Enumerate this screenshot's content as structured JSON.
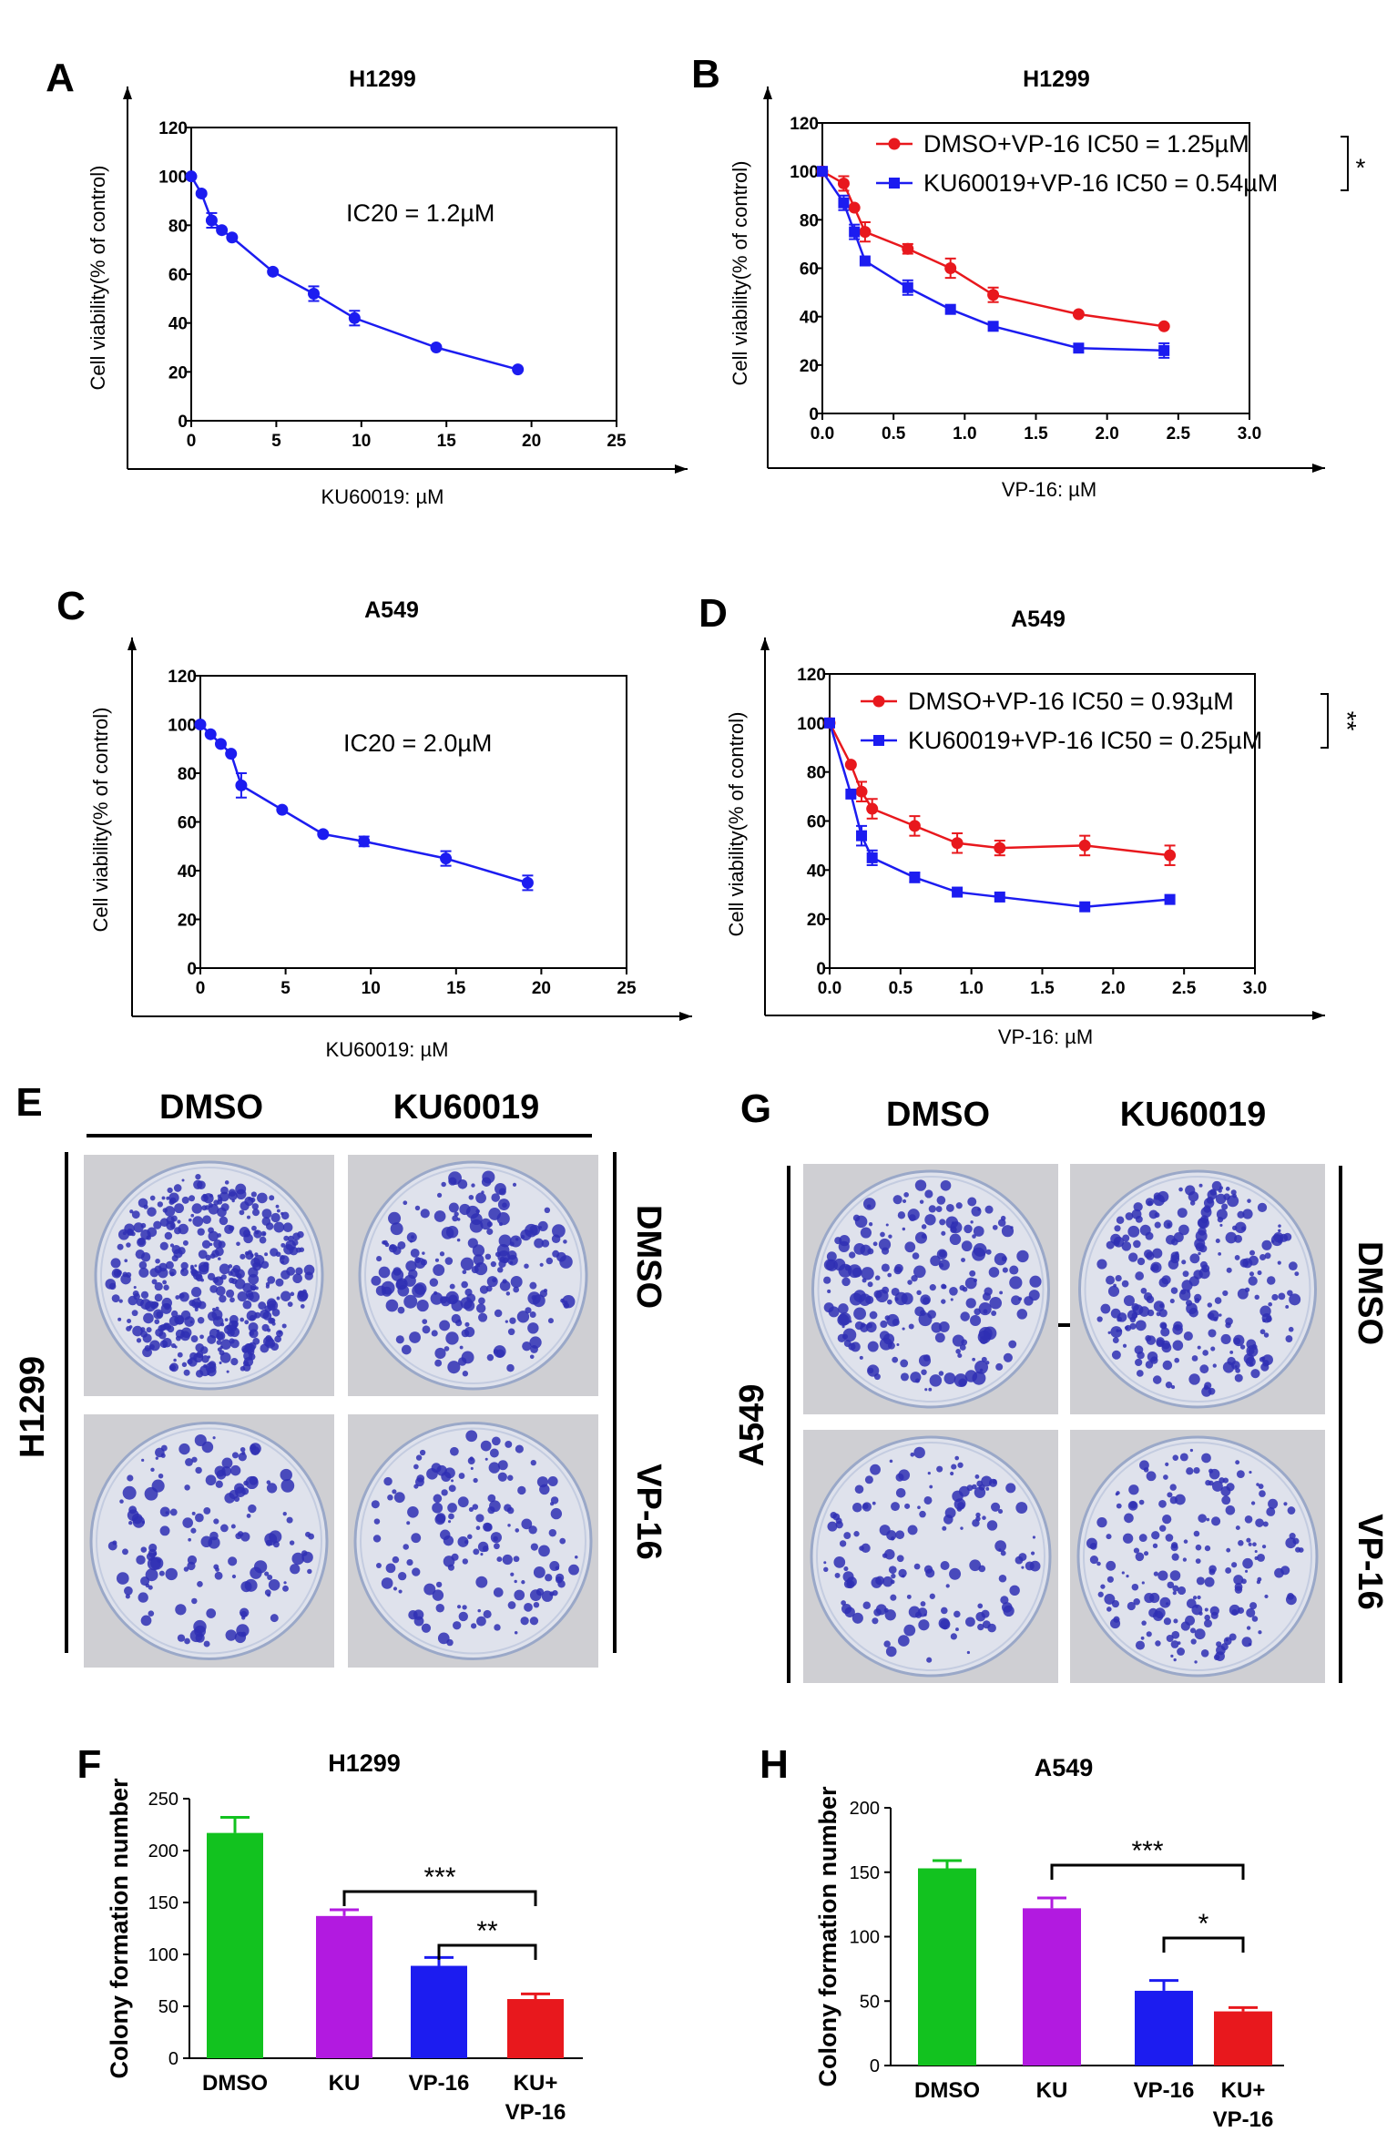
{
  "figure_panels": {
    "A": "A",
    "B": "B",
    "C": "C",
    "D": "D",
    "E": "E",
    "F": "F",
    "G": "G",
    "H": "H"
  },
  "colors": {
    "red": "#e8181d",
    "blue": "#1c1cf0",
    "green": "#12c21f",
    "purple": "#b21ae0",
    "axis": "#000000",
    "plate_bg": "#cfcfd3",
    "plate_fill": "#dfe2ec",
    "colony": "#2f2fb4"
  },
  "chart_data": [
    {
      "id": "A",
      "type": "line",
      "title": "H1299",
      "xlabel": "KU60019: µM",
      "ylabel": "Cell viability(% of control)",
      "xlim": [
        0,
        25
      ],
      "ylim": [
        0,
        120
      ],
      "xticks": [
        "0",
        "5",
        "10",
        "15",
        "20",
        "25"
      ],
      "yticks": [
        "0",
        "20",
        "40",
        "60",
        "80",
        "100",
        "120"
      ],
      "annotation": "IC20 = 1.2µM",
      "series": [
        {
          "name": "KU60019",
          "color": "blue",
          "marker": "circle",
          "x": [
            0,
            0.6,
            1.2,
            1.8,
            2.4,
            4.8,
            7.2,
            9.6,
            14.4,
            19.2
          ],
          "y": [
            100,
            93,
            82,
            78,
            75,
            61,
            52,
            42,
            30,
            21
          ],
          "err": [
            0,
            0,
            3,
            0,
            0,
            0,
            3,
            3,
            0,
            0
          ]
        }
      ]
    },
    {
      "id": "B",
      "type": "line",
      "title": "H1299",
      "xlabel": "VP-16: µM",
      "ylabel": "Cell viability(% of control)",
      "xlim": [
        0,
        3
      ],
      "ylim": [
        0,
        120
      ],
      "xticks": [
        "0.0",
        "0.5",
        "1.0",
        "1.5",
        "2.0",
        "2.5",
        "3.0"
      ],
      "yticks": [
        "0",
        "20",
        "40",
        "60",
        "80",
        "100",
        "120"
      ],
      "significance": "*",
      "series": [
        {
          "name": "DMSO+VP-16 IC50 = 1.25µM",
          "color": "red",
          "marker": "circle",
          "x": [
            0,
            0.15,
            0.225,
            0.3,
            0.6,
            0.9,
            1.2,
            1.8,
            2.4
          ],
          "y": [
            100,
            95,
            85,
            75,
            68,
            60,
            49,
            41,
            36
          ],
          "err": [
            0,
            3,
            0,
            4,
            2,
            4,
            3,
            0,
            0
          ]
        },
        {
          "name": "KU60019+VP-16 IC50 = 0.54µM",
          "color": "blue",
          "marker": "square",
          "x": [
            0,
            0.15,
            0.225,
            0.3,
            0.6,
            0.9,
            1.2,
            1.8,
            2.4
          ],
          "y": [
            100,
            87,
            75,
            63,
            52,
            43,
            36,
            27,
            26
          ],
          "err": [
            0,
            3,
            3,
            0,
            3,
            0,
            0,
            0,
            3
          ]
        }
      ]
    },
    {
      "id": "C",
      "type": "line",
      "title": "A549",
      "xlabel": "KU60019: µM",
      "ylabel": "Cell viability(% of control)",
      "xlim": [
        0,
        25
      ],
      "ylim": [
        0,
        120
      ],
      "xticks": [
        "0",
        "5",
        "10",
        "15",
        "20",
        "25"
      ],
      "yticks": [
        "0",
        "20",
        "40",
        "60",
        "80",
        "100",
        "120"
      ],
      "annotation": "IC20 = 2.0µM",
      "series": [
        {
          "name": "KU60019",
          "color": "blue",
          "marker": "circle",
          "x": [
            0,
            0.6,
            1.2,
            1.8,
            2.4,
            4.8,
            7.2,
            9.6,
            14.4,
            19.2
          ],
          "y": [
            100,
            96,
            92,
            88,
            75,
            65,
            55,
            52,
            45,
            35
          ],
          "err": [
            0,
            0,
            0,
            0,
            5,
            0,
            0,
            2,
            3,
            3
          ]
        }
      ]
    },
    {
      "id": "D",
      "type": "line",
      "title": "A549",
      "xlabel": "VP-16: µM",
      "ylabel": "Cell viability(% of control)",
      "xlim": [
        0,
        3
      ],
      "ylim": [
        0,
        120
      ],
      "xticks": [
        "0.0",
        "0.5",
        "1.0",
        "1.5",
        "2.0",
        "2.5",
        "3.0"
      ],
      "yticks": [
        "0",
        "20",
        "40",
        "60",
        "80",
        "100",
        "120"
      ],
      "significance": "**",
      "series": [
        {
          "name": "DMSO+VP-16 IC50 = 0.93µM",
          "color": "red",
          "marker": "circle",
          "x": [
            0,
            0.15,
            0.225,
            0.3,
            0.6,
            0.9,
            1.2,
            1.8,
            2.4
          ],
          "y": [
            100,
            83,
            72,
            65,
            58,
            51,
            49,
            50,
            46
          ],
          "err": [
            0,
            0,
            4,
            4,
            4,
            4,
            3,
            4,
            4
          ]
        },
        {
          "name": "KU60019+VP-16 IC50 = 0.25µM",
          "color": "blue",
          "marker": "square",
          "x": [
            0,
            0.15,
            0.225,
            0.3,
            0.6,
            0.9,
            1.2,
            1.8,
            2.4
          ],
          "y": [
            100,
            71,
            54,
            45,
            37,
            31,
            29,
            25,
            28
          ],
          "err": [
            0,
            0,
            4,
            3,
            2,
            0,
            0,
            0,
            0
          ]
        }
      ]
    },
    {
      "id": "F",
      "type": "bar",
      "title": "H1299",
      "ylabel": "Colony formation number",
      "categories": [
        "DMSO",
        "KU",
        "VP-16",
        "KU+ VP-16"
      ],
      "category_lines": [
        [
          "DMSO"
        ],
        [
          "KU"
        ],
        [
          "VP-16"
        ],
        [
          "KU+",
          "VP-16"
        ]
      ],
      "values": [
        217,
        137,
        89,
        57
      ],
      "err": [
        15,
        6,
        8,
        5
      ],
      "colors": [
        "green",
        "purple",
        "blue",
        "red"
      ],
      "ylim": [
        0,
        250
      ],
      "yticks": [
        "0",
        "50",
        "100",
        "150",
        "200",
        "250"
      ],
      "significance": [
        {
          "from": 1,
          "to": 3,
          "label": "***"
        },
        {
          "from": 2,
          "to": 3,
          "label": "**"
        }
      ]
    },
    {
      "id": "H",
      "type": "bar",
      "title": "A549",
      "ylabel": "Colony formation number",
      "categories": [
        "DMSO",
        "KU",
        "VP-16",
        "KU+ VP-16"
      ],
      "category_lines": [
        [
          "DMSO"
        ],
        [
          "KU"
        ],
        [
          "VP-16"
        ],
        [
          "KU+",
          "VP-16"
        ]
      ],
      "values": [
        153,
        122,
        58,
        42
      ],
      "err": [
        6,
        8,
        8,
        3
      ],
      "colors": [
        "green",
        "purple",
        "blue",
        "red"
      ],
      "ylim": [
        0,
        200
      ],
      "yticks": [
        "0",
        "50",
        "100",
        "150",
        "200"
      ],
      "significance": [
        {
          "from": 1,
          "to": 3,
          "label": "***"
        },
        {
          "from": 2,
          "to": 3,
          "label": "*"
        }
      ]
    }
  ],
  "colony_assays": [
    {
      "id": "E",
      "cell_line": "H1299",
      "column_headers": [
        "DMSO",
        "KU60019"
      ],
      "row_headers": [
        "DMSO",
        "VP-16"
      ]
    },
    {
      "id": "G",
      "cell_line": "A549",
      "column_headers": [
        "DMSO",
        "KU60019"
      ],
      "row_headers": [
        "DMSO",
        "VP-16"
      ]
    }
  ]
}
